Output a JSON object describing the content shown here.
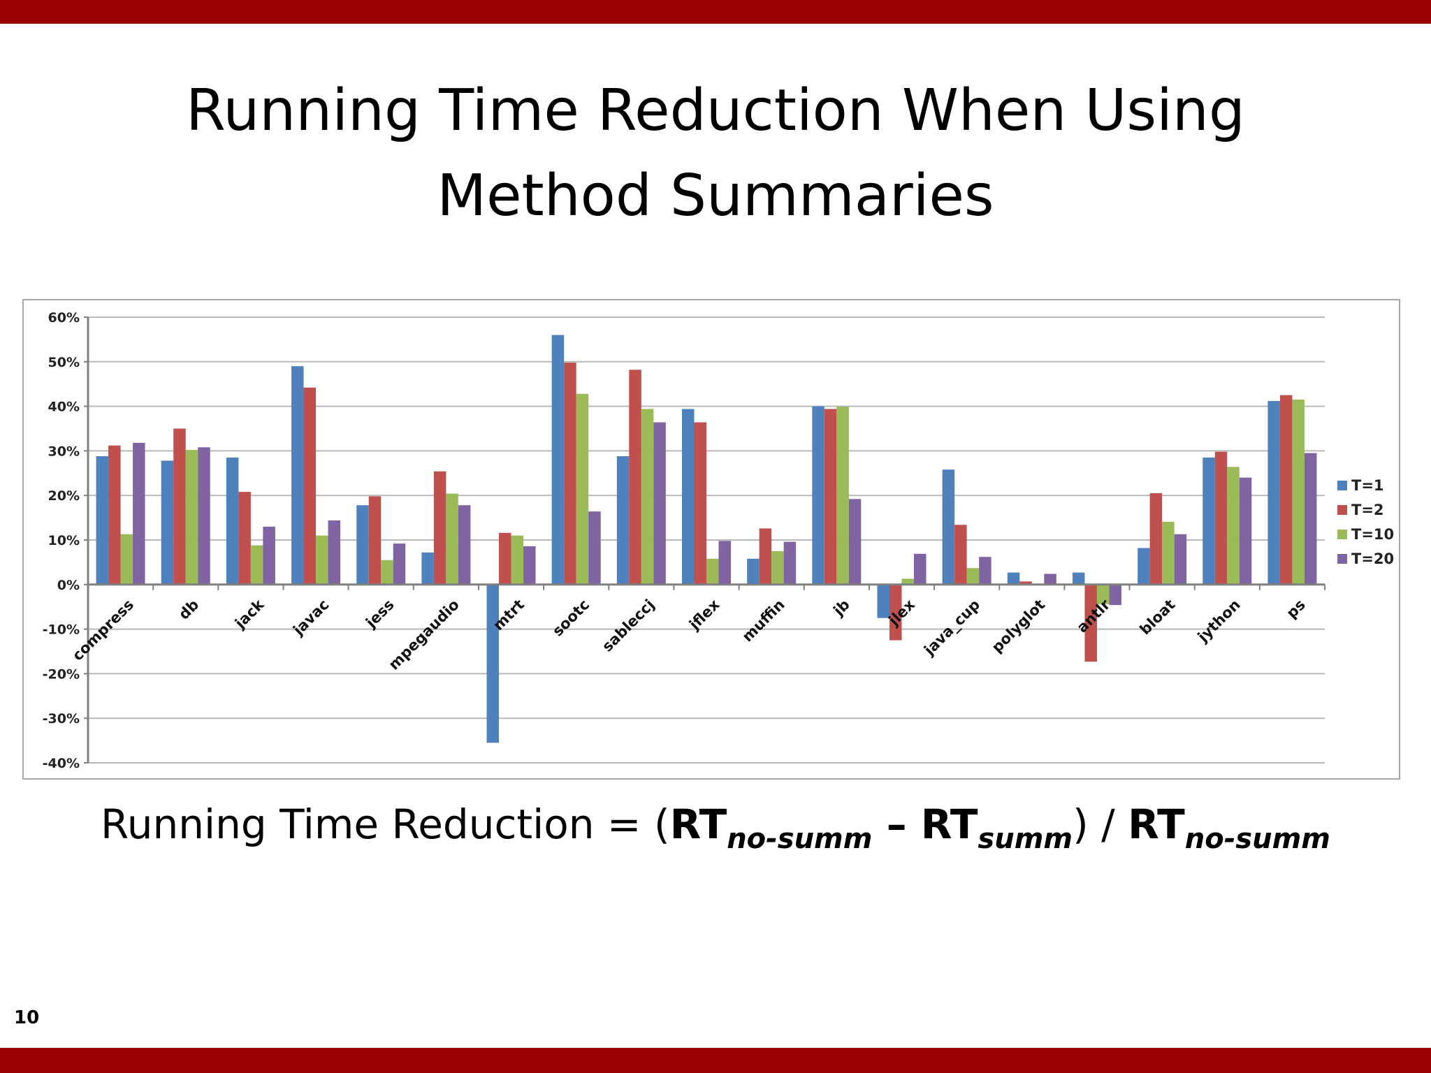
{
  "slide": {
    "title_line1": "Running Time Reduction When Using",
    "title_line2": "Method Summaries",
    "formula": {
      "prefix": "Running Time Reduction = (",
      "rt1": "RT",
      "sub1": "no-summ",
      "minus": " – ",
      "rt2": "RT",
      "sub2": "summ",
      "close": ") / ",
      "rt3": "RT",
      "sub3": "no-summ"
    },
    "page_number": "10"
  },
  "colors": {
    "band": "#990000",
    "series": [
      "#4f81bd",
      "#c0504d",
      "#9bbb59",
      "#8064a2"
    ]
  },
  "chart_data": {
    "type": "bar",
    "title": "",
    "xlabel": "",
    "ylabel": "",
    "ylim": [
      -40,
      60
    ],
    "yticks": [
      -40,
      -30,
      -20,
      -10,
      0,
      10,
      20,
      30,
      40,
      50,
      60
    ],
    "ytick_labels": [
      "-40%",
      "-30%",
      "-20%",
      "-10%",
      "0%",
      "10%",
      "20%",
      "30%",
      "40%",
      "50%",
      "60%"
    ],
    "grid": true,
    "legend_position": "right",
    "categories": [
      "compress",
      "db",
      "jack",
      "javac",
      "jess",
      "mpegaudio",
      "mtrt",
      "sootc",
      "sableccj",
      "jflex",
      "muffin",
      "jb",
      "jlex",
      "java_cup",
      "polyglot",
      "antlr",
      "bloat",
      "jython",
      "ps"
    ],
    "series": [
      {
        "name": "T=1",
        "values": [
          28.8,
          27.8,
          28.5,
          49.0,
          17.8,
          7.2,
          -35.5,
          56.0,
          28.8,
          39.4,
          5.8,
          40.0,
          -7.5,
          25.8,
          2.7,
          2.7,
          8.2,
          28.5,
          41.2
        ]
      },
      {
        "name": "T=2",
        "values": [
          31.2,
          35.0,
          20.8,
          44.2,
          19.8,
          25.4,
          11.6,
          49.8,
          48.2,
          36.4,
          12.6,
          39.4,
          -12.5,
          13.4,
          0.7,
          -17.3,
          20.5,
          29.8,
          42.5
        ]
      },
      {
        "name": "T=10",
        "values": [
          11.3,
          30.2,
          8.8,
          11.0,
          5.5,
          20.4,
          11.0,
          42.8,
          39.4,
          5.8,
          7.5,
          39.9,
          1.3,
          3.7,
          0.0,
          -4.4,
          14.1,
          26.4,
          41.5
        ]
      },
      {
        "name": "T=20",
        "values": [
          31.8,
          30.8,
          13.0,
          14.4,
          9.2,
          17.8,
          8.6,
          16.4,
          36.4,
          9.8,
          9.6,
          19.2,
          6.9,
          6.2,
          2.4,
          -4.6,
          11.3,
          24.0,
          29.5
        ]
      }
    ]
  }
}
